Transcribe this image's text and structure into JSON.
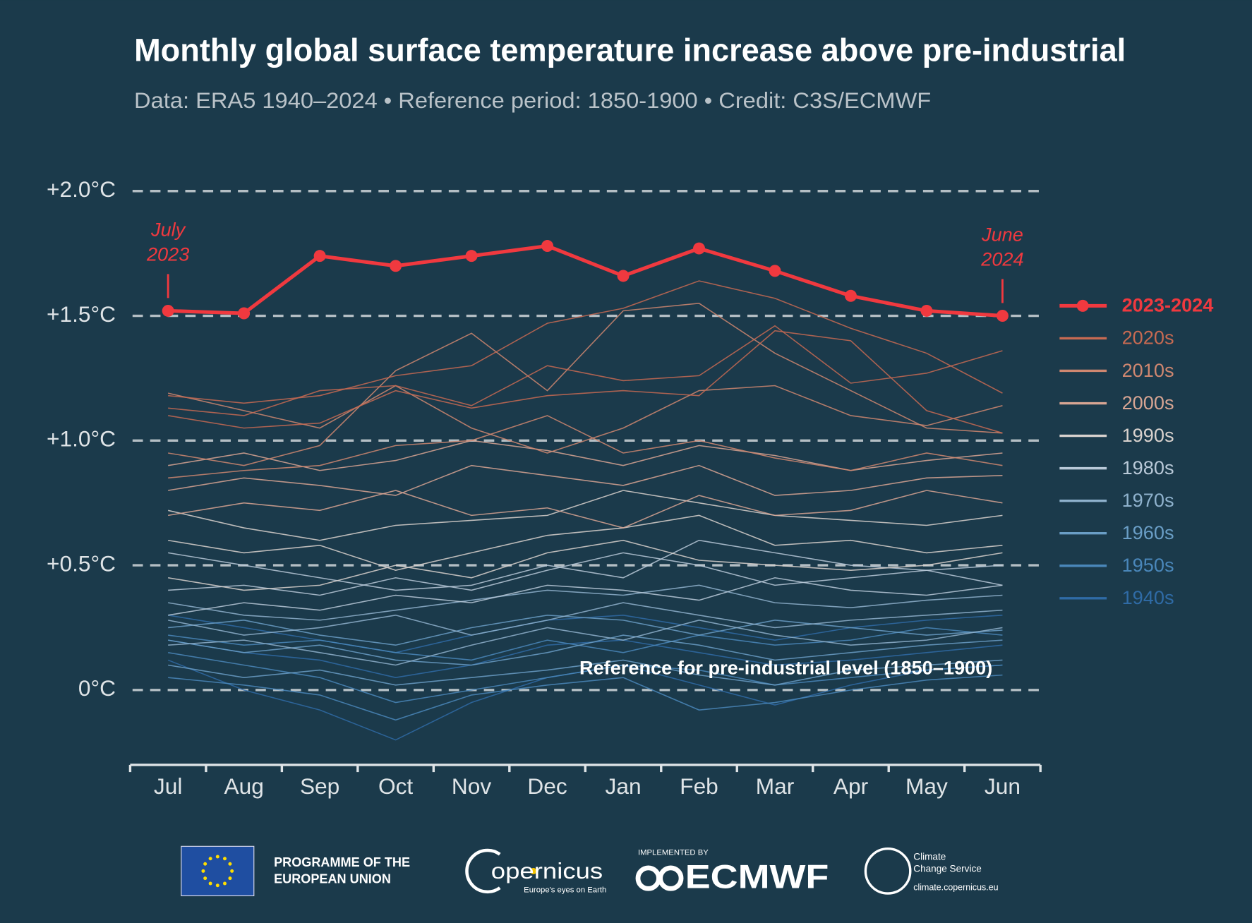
{
  "chart_data": {
    "type": "line",
    "title": "Monthly global surface temperature increase above pre-industrial",
    "subtitle": "Data: ERA5 1940–2024 • Reference period: 1850-1900 • Credit: C3S/ECMWF",
    "categories": [
      "Jul",
      "Aug",
      "Sep",
      "Oct",
      "Nov",
      "Dec",
      "Jan",
      "Feb",
      "Mar",
      "Apr",
      "May",
      "Jun"
    ],
    "ylim": [
      -0.3,
      2.1
    ],
    "yticks": [
      {
        "value": 0,
        "label": "0°C"
      },
      {
        "value": 0.5,
        "label": "+0.5°C"
      },
      {
        "value": 1,
        "label": "+1.0°C"
      },
      {
        "value": 1.5,
        "label": "+1.5°C"
      },
      {
        "value": 2,
        "label": "+2.0°C"
      }
    ],
    "grid": true,
    "legend": "right",
    "annotations": [
      [
        "July",
        "2023"
      ],
      [
        "June",
        "2024"
      ]
    ],
    "reference_label": "Reference for pre-industrial level (1850–1900)",
    "series": [
      {
        "name": "2023-2024",
        "color": "#f0393f",
        "values": [
          1.52,
          1.51,
          1.74,
          1.7,
          1.74,
          1.78,
          1.66,
          1.77,
          1.68,
          1.58,
          1.52,
          1.5
        ]
      },
      {
        "name": "2020s",
        "color": "#c76a52",
        "lines": [
          [
            1.18,
            1.15,
            1.18,
            1.26,
            1.3,
            1.47,
            1.53,
            1.64,
            1.57,
            1.45,
            1.35,
            1.19
          ],
          [
            1.13,
            1.1,
            1.2,
            1.22,
            1.14,
            1.3,
            1.24,
            1.26,
            1.46,
            1.23,
            1.27,
            1.36
          ],
          [
            1.1,
            1.05,
            1.07,
            1.2,
            1.13,
            1.18,
            1.2,
            1.18,
            1.44,
            1.4,
            1.12,
            1.03
          ]
        ]
      },
      {
        "name": "2010s",
        "color": "#cf8770",
        "lines": [
          [
            0.95,
            0.9,
            0.98,
            1.28,
            1.43,
            1.2,
            1.52,
            1.55,
            1.35,
            1.2,
            1.05,
            1.03
          ],
          [
            1.19,
            1.12,
            1.05,
            1.22,
            1.05,
            0.95,
            1.05,
            1.2,
            1.22,
            1.1,
            1.06,
            1.14
          ],
          [
            0.85,
            0.88,
            0.9,
            0.98,
            1.0,
            1.1,
            0.95,
            1.0,
            0.93,
            0.88,
            0.95,
            0.9
          ]
        ]
      },
      {
        "name": "2000s",
        "color": "#d8a593",
        "lines": [
          [
            0.8,
            0.85,
            0.82,
            0.78,
            0.9,
            0.86,
            0.82,
            0.9,
            0.78,
            0.8,
            0.85,
            0.86
          ],
          [
            0.7,
            0.75,
            0.72,
            0.8,
            0.7,
            0.73,
            0.65,
            0.78,
            0.7,
            0.72,
            0.8,
            0.75
          ],
          [
            0.9,
            0.95,
            0.88,
            0.92,
            1.0,
            0.96,
            0.9,
            0.98,
            0.94,
            0.88,
            0.92,
            0.95
          ]
        ]
      },
      {
        "name": "1990s",
        "color": "#d9d2ce",
        "lines": [
          [
            0.6,
            0.55,
            0.58,
            0.48,
            0.55,
            0.62,
            0.65,
            0.7,
            0.58,
            0.6,
            0.55,
            0.58
          ],
          [
            0.45,
            0.4,
            0.42,
            0.5,
            0.45,
            0.55,
            0.6,
            0.52,
            0.5,
            0.48,
            0.5,
            0.55
          ],
          [
            0.72,
            0.65,
            0.6,
            0.66,
            0.68,
            0.7,
            0.8,
            0.75,
            0.7,
            0.68,
            0.66,
            0.7
          ]
        ]
      },
      {
        "name": "1980s",
        "color": "#b9c9d8",
        "lines": [
          [
            0.4,
            0.42,
            0.38,
            0.45,
            0.4,
            0.48,
            0.55,
            0.5,
            0.42,
            0.45,
            0.48,
            0.42
          ],
          [
            0.55,
            0.5,
            0.45,
            0.4,
            0.42,
            0.5,
            0.45,
            0.6,
            0.55,
            0.5,
            0.48,
            0.5
          ],
          [
            0.3,
            0.35,
            0.32,
            0.38,
            0.35,
            0.42,
            0.4,
            0.36,
            0.45,
            0.4,
            0.38,
            0.42
          ]
        ]
      },
      {
        "name": "1970s",
        "color": "#8fb2cd",
        "lines": [
          [
            0.28,
            0.22,
            0.25,
            0.3,
            0.22,
            0.28,
            0.35,
            0.3,
            0.25,
            0.28,
            0.3,
            0.32
          ],
          [
            0.18,
            0.2,
            0.15,
            0.1,
            0.18,
            0.25,
            0.2,
            0.28,
            0.22,
            0.18,
            0.2,
            0.25
          ],
          [
            0.35,
            0.3,
            0.28,
            0.32,
            0.36,
            0.4,
            0.38,
            0.42,
            0.35,
            0.33,
            0.36,
            0.38
          ]
        ]
      },
      {
        "name": "1960s",
        "color": "#6a9ec6",
        "lines": [
          [
            0.2,
            0.15,
            0.18,
            0.12,
            0.1,
            0.15,
            0.22,
            0.18,
            0.12,
            0.15,
            0.18,
            0.2
          ],
          [
            0.25,
            0.28,
            0.22,
            0.18,
            0.25,
            0.3,
            0.28,
            0.22,
            0.28,
            0.25,
            0.22,
            0.24
          ],
          [
            0.1,
            0.05,
            0.08,
            0.02,
            0.05,
            0.08,
            0.12,
            0.06,
            0.02,
            0.08,
            0.1,
            0.12
          ]
        ]
      },
      {
        "name": "1950s",
        "color": "#4a87ba",
        "lines": [
          [
            0.15,
            0.1,
            0.05,
            -0.05,
            0.0,
            0.05,
            0.1,
            0.08,
            0.02,
            0.05,
            0.08,
            0.1
          ],
          [
            0.22,
            0.18,
            0.2,
            0.15,
            0.12,
            0.2,
            0.15,
            0.22,
            0.18,
            0.2,
            0.25,
            0.22
          ],
          [
            0.05,
            0.02,
            -0.02,
            -0.12,
            -0.02,
            0.02,
            0.05,
            -0.08,
            -0.05,
            0.0,
            0.04,
            0.06
          ]
        ]
      },
      {
        "name": "1940s",
        "color": "#2f6ba6",
        "lines": [
          [
            0.3,
            0.25,
            0.2,
            0.15,
            0.22,
            0.28,
            0.3,
            0.25,
            0.2,
            0.25,
            0.28,
            0.3
          ],
          [
            0.12,
            0.0,
            -0.08,
            -0.2,
            -0.05,
            0.05,
            0.1,
            0.02,
            -0.06,
            0.02,
            0.08,
            0.1
          ],
          [
            0.2,
            0.15,
            0.12,
            0.05,
            0.1,
            0.18,
            0.2,
            0.15,
            0.1,
            0.12,
            0.15,
            0.18
          ]
        ]
      }
    ]
  },
  "footer": {
    "eu": [
      "PROGRAMME OF THE",
      "EUROPEAN UNION"
    ],
    "copernicus": "opernicus",
    "copernicus_tagline": "Europe's eyes on Earth",
    "implemented_by": "IMPLEMENTED BY",
    "ecmwf": "ECMWF",
    "c3s": [
      "Climate",
      "Change Service"
    ],
    "c3s_url": "climate.copernicus.eu"
  }
}
